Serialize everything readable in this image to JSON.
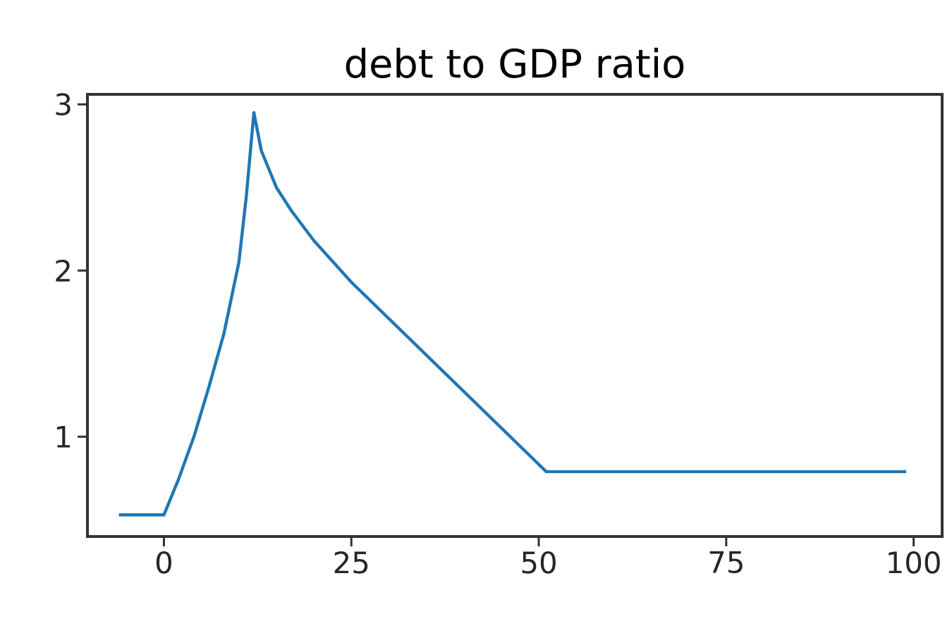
{
  "chart_data": {
    "type": "line",
    "title": "debt to GDP ratio",
    "x": [
      -6,
      0,
      2,
      4,
      6,
      8,
      10,
      11,
      12,
      13,
      15,
      17,
      20,
      25,
      51,
      99
    ],
    "series": [
      {
        "color": "#1f77b4",
        "values": [
          0.53,
          0.53,
          0.75,
          1.0,
          1.3,
          1.62,
          2.05,
          2.45,
          2.95,
          2.72,
          2.5,
          2.36,
          2.18,
          1.93,
          0.79,
          0.79
        ]
      }
    ],
    "xlim": [
      -10.2,
      103.8
    ],
    "ylim": [
      0.4,
      3.06
    ],
    "xticks": [
      0,
      25,
      50,
      75,
      100
    ],
    "yticks": [
      1,
      2,
      3
    ]
  }
}
